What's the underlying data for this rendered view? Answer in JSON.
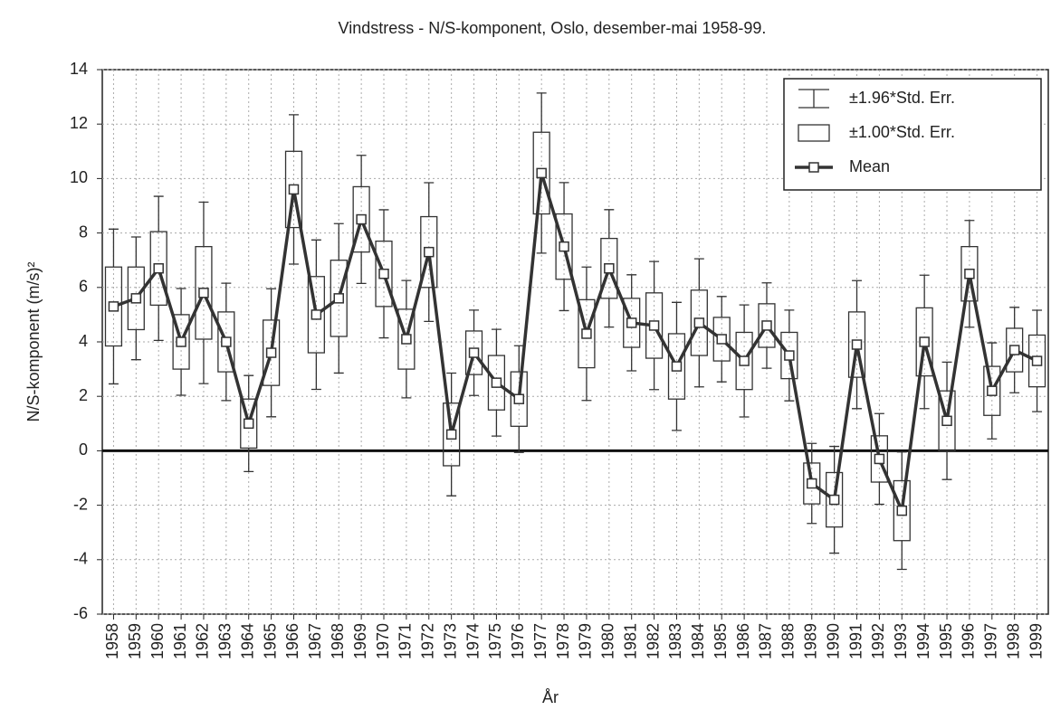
{
  "chart_data": {
    "type": "boxwhisker",
    "title": "Vindstress - N/S-komponent, Oslo, desember-mai 1958-99.",
    "x_label": "År",
    "y_label": "N/S-komponent (m/s)²",
    "categories": [
      "1958",
      "1959",
      "1960",
      "1961",
      "1962",
      "1963",
      "1964",
      "1965",
      "1966",
      "1967",
      "1968",
      "1969",
      "1970",
      "1971",
      "1972",
      "1973",
      "1974",
      "1975",
      "1976",
      "1977",
      "1978",
      "1979",
      "1980",
      "1981",
      "1982",
      "1983",
      "1984",
      "1985",
      "1986",
      "1987",
      "1988",
      "1989",
      "1990",
      "1991",
      "1992",
      "1993",
      "1994",
      "1995",
      "1996",
      "1997",
      "1998",
      "1999"
    ],
    "mean": [
      5.3,
      5.6,
      6.7,
      4.0,
      5.8,
      4.0,
      1.0,
      3.6,
      9.6,
      5.0,
      5.6,
      8.5,
      6.5,
      4.1,
      7.3,
      0.6,
      3.6,
      2.5,
      1.9,
      10.2,
      7.5,
      4.3,
      6.7,
      4.7,
      4.6,
      3.1,
      4.7,
      4.1,
      3.3,
      4.6,
      3.5,
      -1.2,
      -1.8,
      3.9,
      -0.3,
      -2.2,
      4.0,
      1.1,
      6.5,
      2.2,
      3.7,
      3.3
    ],
    "std_err": [
      1.45,
      1.15,
      1.35,
      1.0,
      1.7,
      1.1,
      0.9,
      1.2,
      1.4,
      1.4,
      1.4,
      1.2,
      1.2,
      1.1,
      1.3,
      1.15,
      0.8,
      1.0,
      1.0,
      1.5,
      1.2,
      1.25,
      1.1,
      0.9,
      1.2,
      1.2,
      1.2,
      0.8,
      1.05,
      0.8,
      0.85,
      0.75,
      1.0,
      1.2,
      0.85,
      1.1,
      1.25,
      1.1,
      1.0,
      0.9,
      0.8,
      0.95
    ],
    "error_factors": [
      {
        "value": 1.96,
        "label": "±1.96*Std. Err."
      },
      {
        "value": 1.0,
        "label": "±1.00*Std. Err."
      }
    ],
    "mean_label": "Mean",
    "color": "#333333",
    "reference_line": 0,
    "ylim": [
      -6,
      14
    ],
    "yticks": [
      -6,
      -4,
      -2,
      0,
      2,
      4,
      6,
      8,
      10,
      12,
      14
    ],
    "grid": true,
    "legend": "top-right"
  }
}
